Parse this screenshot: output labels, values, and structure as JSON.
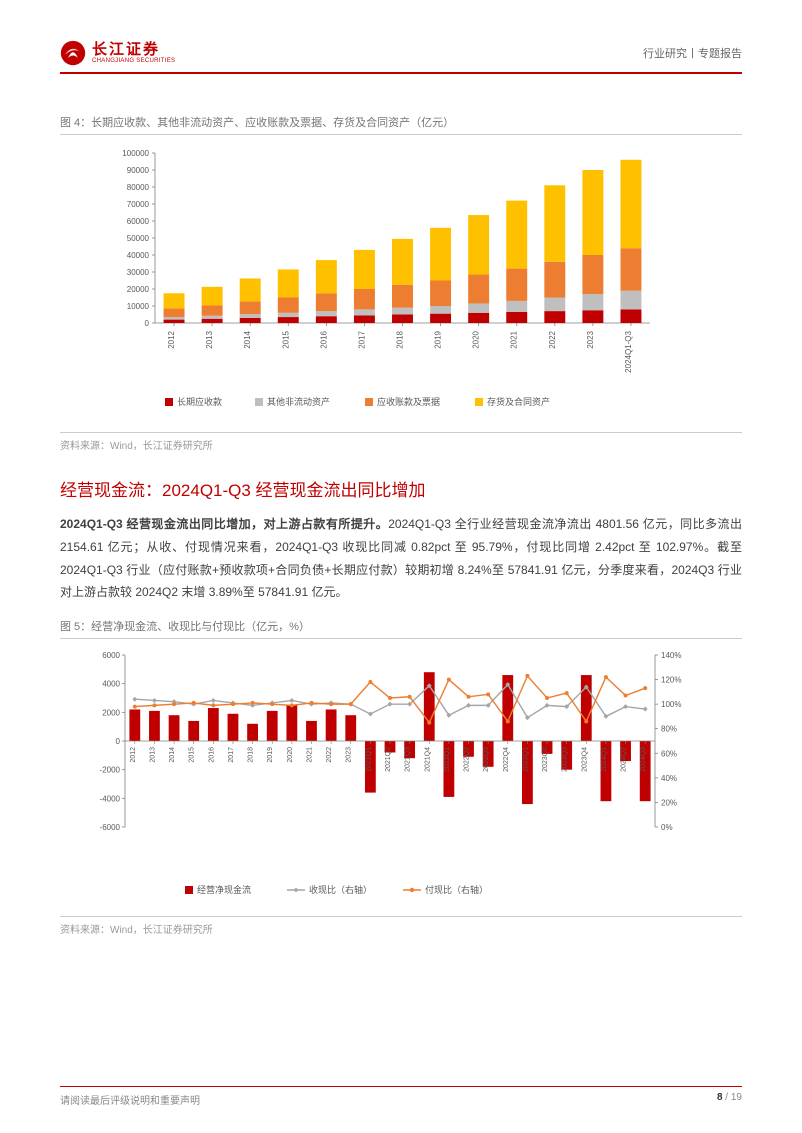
{
  "header": {
    "logo_cn": "长江证券",
    "logo_en": "CHANGJIANG SECURITIES",
    "right_text": "行业研究丨专题报告",
    "logo_color": "#c00000"
  },
  "figure4": {
    "caption": "图 4：长期应收款、其他非流动资产、应收账款及票据、存货及合同资产（亿元）",
    "source": "资料来源：Wind，长江证券研究所",
    "chart": {
      "type": "stacked-bar",
      "categories": [
        "2012",
        "2013",
        "2014",
        "2015",
        "2016",
        "2017",
        "2018",
        "2019",
        "2020",
        "2021",
        "2022",
        "2023",
        "2024Q1-Q3"
      ],
      "series": [
        {
          "name": "长期应收款",
          "color": "#c00000",
          "values": [
            2000,
            2500,
            3000,
            3500,
            4000,
            4500,
            5000,
            5500,
            6000,
            6500,
            7000,
            7500,
            8000
          ]
        },
        {
          "name": "其他非流动资产",
          "color": "#bfbfbf",
          "values": [
            1500,
            1800,
            2200,
            2500,
            3000,
            3500,
            4000,
            4500,
            5500,
            6500,
            8000,
            9500,
            11000
          ]
        },
        {
          "name": "应收账款及票据",
          "color": "#ed7d31",
          "values": [
            5000,
            6000,
            7500,
            9000,
            10500,
            12000,
            13500,
            15000,
            17000,
            19000,
            21000,
            23000,
            25000
          ]
        },
        {
          "name": "存货及合同资产",
          "color": "#ffc000",
          "values": [
            9000,
            11000,
            13500,
            16500,
            19500,
            23000,
            27000,
            31000,
            35000,
            40000,
            45000,
            50000,
            52000
          ]
        }
      ],
      "ylim": [
        0,
        100000
      ],
      "ytick_step": 10000,
      "background_color": "#ffffff",
      "axis_color": "#808080",
      "tick_fontsize": 8,
      "legend_fontsize": 9,
      "bar_width_ratio": 0.55,
      "last_bar_label_rotation": 90
    }
  },
  "section": {
    "heading": "经营现金流：2024Q1-Q3 经营现金流出同比增加",
    "body_bold": "2024Q1-Q3 经营现金流出同比增加，对上游占款有所提升。",
    "body_rest": "2024Q1-Q3 全行业经营现金流净流出 4801.56 亿元，同比多流出 2154.61 亿元；从收、付现情况来看，2024Q1-Q3 收现比同减 0.82pct 至 95.79%，付现比同增 2.42pct 至 102.97%。截至 2024Q1-Q3 行业（应付账款+预收款项+合同负债+长期应付款）较期初增 8.24%至 57841.91 亿元，分季度来看，2024Q3 行业对上游占款较 2024Q2 末增 3.89%至 57841.91 亿元。"
  },
  "figure5": {
    "caption": "图 5：经营净现金流、收现比与付现比（亿元，%）",
    "source": "资料来源：Wind，长江证券研究所",
    "chart": {
      "type": "bar-with-dual-lines",
      "categories": [
        "2012",
        "2013",
        "2014",
        "2015",
        "2016",
        "2017",
        "2018",
        "2019",
        "2020",
        "2021",
        "2022",
        "2023",
        "2021Q1",
        "2021Q2",
        "2021Q3",
        "2021Q4",
        "2022Q1",
        "2022Q2",
        "2022Q3",
        "2022Q4",
        "2023Q1",
        "2023Q2",
        "2023Q3",
        "2023Q4",
        "2024Q1",
        "2024Q2",
        "2024Q3"
      ],
      "bars": {
        "name": "经营净现金流",
        "color": "#c00000",
        "values": [
          2200,
          2100,
          1800,
          1400,
          2300,
          1900,
          1200,
          2100,
          2500,
          1400,
          2200,
          1800,
          -3600,
          -800,
          -1200,
          4800,
          -3900,
          -1100,
          -1800,
          4600,
          -4400,
          -900,
          -2000,
          4600,
          -4200,
          -1400,
          -4200
        ]
      },
      "lines": [
        {
          "name": "收现比（右轴）",
          "color": "#a6a6a6",
          "marker": "diamond",
          "values": [
            104,
            103,
            102,
            100,
            103,
            101,
            99,
            101,
            103,
            100,
            101,
            100,
            92,
            100,
            100,
            115,
            91,
            99,
            99,
            116,
            89,
            99,
            98,
            114,
            90,
            98,
            96
          ]
        },
        {
          "name": "付现比（右轴）",
          "color": "#ed7d31",
          "marker": "circle",
          "values": [
            98,
            99,
            100,
            101,
            99,
            100,
            101,
            100,
            99,
            101,
            100,
            100,
            118,
            105,
            106,
            85,
            120,
            106,
            108,
            86,
            123,
            105,
            109,
            86,
            122,
            107,
            113
          ]
        }
      ],
      "ylim_left": [
        -6000,
        6000
      ],
      "ytick_step_left": 2000,
      "ylim_right": [
        0,
        140
      ],
      "ytick_step_right": 20,
      "background_color": "#ffffff",
      "axis_color": "#808080",
      "tick_fontsize": 7,
      "legend_fontsize": 9,
      "bar_width_ratio": 0.55,
      "label_rotation": 90
    }
  },
  "footer": {
    "left": "请阅读最后评级说明和重要声明",
    "page_current": "8",
    "page_sep": " / ",
    "page_total": "19"
  }
}
